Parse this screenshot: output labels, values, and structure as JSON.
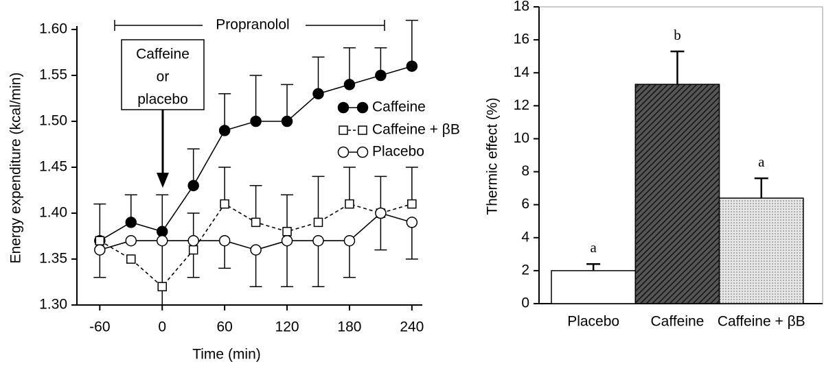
{
  "chart_data": [
    {
      "type": "line",
      "xlabel": "Time (min)",
      "ylabel": "Energy expenditure (kcal/min)",
      "x": [
        -60,
        -30,
        0,
        30,
        60,
        90,
        120,
        150,
        180,
        210,
        240
      ],
      "xlim": [
        -82,
        250
      ],
      "xticks": [
        -60,
        0,
        60,
        120,
        180,
        240
      ],
      "ylim": [
        1.3,
        1.6
      ],
      "yticks": [
        {
          "value": 1.3,
          "label": "1.30"
        },
        1.35,
        {
          "value": 1.4,
          "label": "1.40"
        },
        1.45,
        {
          "value": 1.5,
          "label": "1.50"
        },
        1.55,
        {
          "value": 1.6,
          "label": "1.60"
        }
      ],
      "series": [
        {
          "name": "Caffeine",
          "color": "#000000",
          "marker": "circle",
          "marker_fill": "#000000",
          "dashed": false,
          "error_direction": "up",
          "values": [
            1.37,
            1.39,
            1.38,
            1.43,
            1.49,
            1.5,
            1.5,
            1.53,
            1.54,
            1.55,
            1.56
          ],
          "errors": [
            0.04,
            0.03,
            0.04,
            0.04,
            0.04,
            0.05,
            0.04,
            0.04,
            0.04,
            0.03,
            0.05
          ]
        },
        {
          "name": "Caffeine + βB",
          "color": "#000000",
          "marker": "square",
          "marker_fill": "#ffffff",
          "dashed": true,
          "error_direction": "up",
          "values": [
            1.37,
            1.35,
            1.32,
            1.36,
            1.41,
            1.39,
            1.38,
            1.39,
            1.41,
            1.4,
            1.41
          ],
          "errors": [
            null,
            null,
            null,
            0.04,
            0.04,
            0.04,
            0.04,
            0.05,
            0.04,
            0.04,
            0.04
          ]
        },
        {
          "name": "Placebo",
          "color": "#000000",
          "marker": "circle",
          "marker_fill": "#ffffff",
          "dashed": false,
          "error_direction": "down",
          "values": [
            1.36,
            1.37,
            1.37,
            1.37,
            1.37,
            1.36,
            1.37,
            1.37,
            1.37,
            1.4,
            1.39
          ],
          "errors": [
            0.03,
            null,
            0.07,
            0.04,
            0.03,
            0.04,
            0.05,
            0.05,
            0.04,
            0.04,
            0.04
          ]
        }
      ],
      "annotations": {
        "bracket": "Propranolol",
        "box": [
          "Caffeine",
          "or",
          "placebo"
        ]
      }
    },
    {
      "type": "bar",
      "ylabel": "Thermic effect (%)",
      "categories": [
        "Placebo",
        "Caffeine",
        "Caffeine + βB"
      ],
      "values": [
        2.0,
        13.3,
        6.4
      ],
      "errors": [
        0.4,
        2.0,
        1.2
      ],
      "significance": [
        "a",
        "b",
        "a"
      ],
      "patterns": [
        "none",
        "hatch",
        "dots"
      ],
      "color": "#000000",
      "ylim": [
        0,
        18
      ],
      "yticks": [
        0,
        2,
        4,
        6,
        8,
        10,
        12,
        14,
        16,
        18
      ]
    }
  ]
}
